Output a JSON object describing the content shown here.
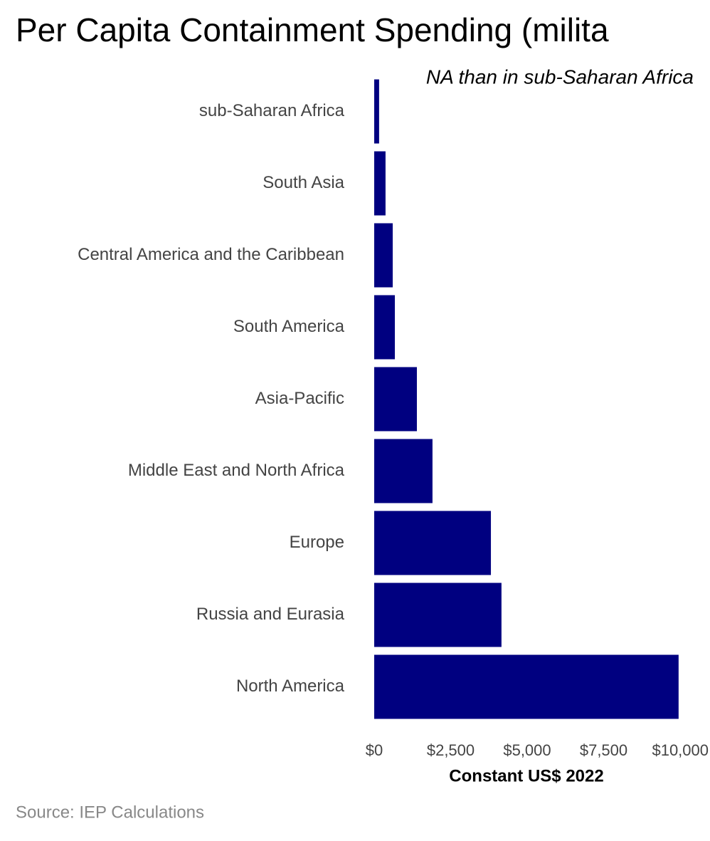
{
  "chart_data": {
    "type": "bar",
    "orientation": "horizontal",
    "title": "Per Capita Containment Spending (milita",
    "subtitle": "NA than in sub-Saharan Africa",
    "categories": [
      "sub-Saharan Africa",
      "South Asia",
      "Central America and the Caribbean",
      "South America",
      "Asia-Pacific",
      "Middle East and North Africa",
      "Europe",
      "Russia and Eurasia",
      "North America"
    ],
    "values": [
      160,
      370,
      605,
      675,
      1395,
      1905,
      3815,
      4160,
      9950
    ],
    "color": "#000080",
    "xlim": [
      0,
      10000
    ],
    "xticks": [
      {
        "value": 0,
        "label": "$0"
      },
      {
        "value": 2500,
        "label": "$2,500"
      },
      {
        "value": 5000,
        "label": "$5,000"
      },
      {
        "value": 7500,
        "label": "$7,500"
      },
      {
        "value": 10000,
        "label": "$10,000"
      }
    ],
    "x_label": "Constant US$ 2022",
    "source": "Source: IEP Calculations",
    "grid": false
  }
}
